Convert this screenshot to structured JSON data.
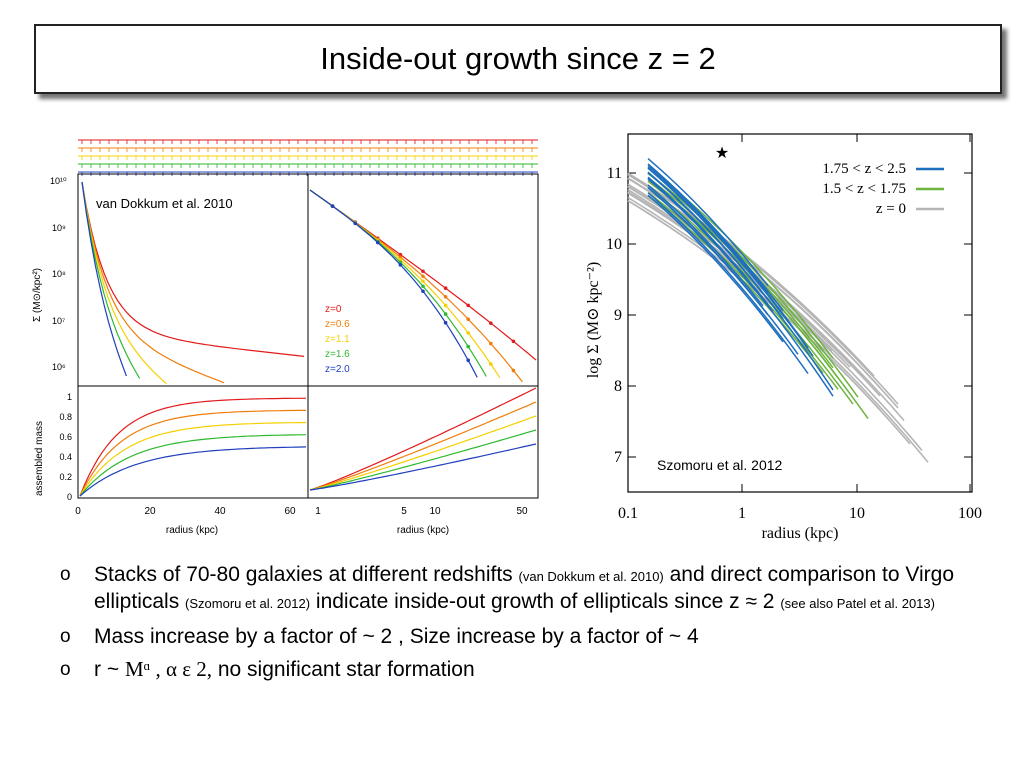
{
  "slide": {
    "title": "Inside-out growth since z = 2"
  },
  "left_figure": {
    "citation": "van Dokkum et al. 2010",
    "top_ylabel": "Σ (M⊙/kpc²)",
    "bottom_ylabel": "assembled mass",
    "xlabel": "radius (kpc)",
    "top_yticks": [
      "10¹⁰",
      "10⁹",
      "10⁸",
      "10⁷",
      "10⁶"
    ],
    "bottom_yticks": [
      "1",
      "0.8",
      "0.6",
      "0.4",
      "0.2",
      "0"
    ],
    "left_xticks": [
      "0",
      "20",
      "40",
      "60"
    ],
    "right_xticks": [
      "1",
      "5",
      "10",
      "50"
    ],
    "legend": [
      {
        "label": "z=0",
        "color": "#e31a1c"
      },
      {
        "label": "z=0.6",
        "color": "#f07d0a"
      },
      {
        "label": "z=1.1",
        "color": "#f5d000"
      },
      {
        "label": "z=1.6",
        "color": "#2eb82e"
      },
      {
        "label": "z=2.0",
        "color": "#1f3fbf"
      }
    ]
  },
  "right_figure": {
    "citation": "Szomoru et al. 2012",
    "ylabel": "log Σ (M⊙ kpc⁻²)",
    "xlabel": "radius (kpc)",
    "yticks": [
      "11",
      "10",
      "9",
      "8",
      "7"
    ],
    "xticks": [
      "0.1",
      "1",
      "10",
      "100"
    ],
    "legend": [
      {
        "label": "1.75 < z < 2.5",
        "color": "#1f6fbf"
      },
      {
        "label": "1.5 < z < 1.75",
        "color": "#6db33f"
      },
      {
        "label": "z = 0",
        "color": "#b5b5b5"
      }
    ],
    "star_marker": "★"
  },
  "bullets": [
    {
      "main_a": "Stacks of 70-80 galaxies at different redshifts ",
      "ref_a": "(van Dokkum et al. 2010)",
      "main_b": " and direct comparison to Virgo ellipticals ",
      "ref_b": "(Szomoru et al. 2012)",
      "main_c": " indicate inside-out growth of ellipticals since z ≈ 2 ",
      "ref_c": "(see also Patel et al. 2013)"
    },
    {
      "text": "Mass increase by a factor of ~ 2 , Size increase by a factor of ~ 4"
    },
    {
      "pre": "r ~ ",
      "formula": "Mᵅ , α ε 2,",
      "post": " no significant star formation"
    }
  ],
  "bullet_marker": "o"
}
